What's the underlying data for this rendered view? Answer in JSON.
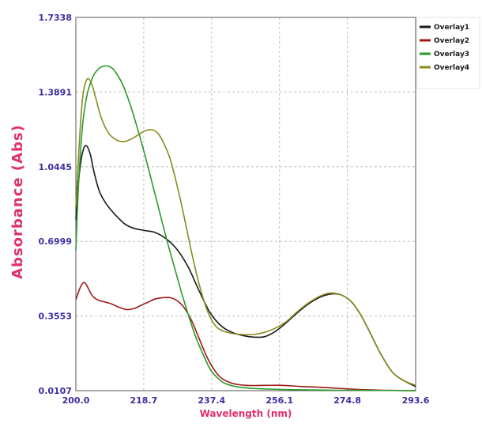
{
  "chart_data": {
    "type": "line",
    "xlabel": "Wavelength (nm)",
    "ylabel": "Absorbance (Abs)",
    "xlim": [
      200.0,
      293.6
    ],
    "ylim": [
      0.0107,
      1.7338
    ],
    "x_ticks": [
      200.0,
      218.7,
      237.4,
      256.1,
      274.8,
      293.6
    ],
    "x_tick_labels": [
      "200.0",
      "218.7",
      "237.4",
      "256.1",
      "274.8",
      "293.6"
    ],
    "y_ticks": [
      0.0107,
      0.3553,
      0.6999,
      1.0445,
      1.3891,
      1.7338
    ],
    "y_tick_labels": [
      "0.0107",
      "0.3553",
      "0.6999",
      "1.0445",
      "1.3891",
      "1.7338"
    ],
    "grid": true,
    "legend_position": "top-right",
    "series": [
      {
        "name": "Overlay1",
        "color": "#1a1a1a",
        "points": [
          [
            200.0,
            0.8
          ],
          [
            200.6,
            0.95
          ],
          [
            201.4,
            1.07
          ],
          [
            202.2,
            1.13
          ],
          [
            203.0,
            1.14
          ],
          [
            204.0,
            1.1
          ],
          [
            205.0,
            1.02
          ],
          [
            206.5,
            0.93
          ],
          [
            208.5,
            0.87
          ],
          [
            211.0,
            0.82
          ],
          [
            213.5,
            0.78
          ],
          [
            216.0,
            0.76
          ],
          [
            219.0,
            0.75
          ],
          [
            222.0,
            0.74
          ],
          [
            225.0,
            0.71
          ],
          [
            228.0,
            0.66
          ],
          [
            231.0,
            0.58
          ],
          [
            234.0,
            0.47
          ],
          [
            237.0,
            0.37
          ],
          [
            240.0,
            0.31
          ],
          [
            243.0,
            0.28
          ],
          [
            246.0,
            0.265
          ],
          [
            249.0,
            0.258
          ],
          [
            252.0,
            0.26
          ],
          [
            255.0,
            0.285
          ],
          [
            258.0,
            0.325
          ],
          [
            261.0,
            0.37
          ],
          [
            264.0,
            0.41
          ],
          [
            267.0,
            0.44
          ],
          [
            269.5,
            0.455
          ],
          [
            271.5,
            0.458
          ],
          [
            273.5,
            0.45
          ],
          [
            276.0,
            0.42
          ],
          [
            278.5,
            0.36
          ],
          [
            281.0,
            0.28
          ],
          [
            284.0,
            0.18
          ],
          [
            287.0,
            0.1
          ],
          [
            290.0,
            0.06
          ],
          [
            293.6,
            0.03
          ]
        ]
      },
      {
        "name": "Overlay2",
        "color": "#a01818",
        "points": [
          [
            200.0,
            0.43
          ],
          [
            200.8,
            0.47
          ],
          [
            201.6,
            0.5
          ],
          [
            202.4,
            0.51
          ],
          [
            203.2,
            0.49
          ],
          [
            204.5,
            0.45
          ],
          [
            206.0,
            0.43
          ],
          [
            208.0,
            0.42
          ],
          [
            210.0,
            0.41
          ],
          [
            212.0,
            0.395
          ],
          [
            214.0,
            0.385
          ],
          [
            216.0,
            0.39
          ],
          [
            218.0,
            0.405
          ],
          [
            220.0,
            0.42
          ],
          [
            222.0,
            0.435
          ],
          [
            224.0,
            0.44
          ],
          [
            226.0,
            0.44
          ],
          [
            228.0,
            0.425
          ],
          [
            230.0,
            0.39
          ],
          [
            232.0,
            0.33
          ],
          [
            234.0,
            0.25
          ],
          [
            236.0,
            0.17
          ],
          [
            238.0,
            0.11
          ],
          [
            240.0,
            0.07
          ],
          [
            243.0,
            0.045
          ],
          [
            247.0,
            0.035
          ],
          [
            252.0,
            0.035
          ],
          [
            257.0,
            0.035
          ],
          [
            262.0,
            0.03
          ],
          [
            268.0,
            0.026
          ],
          [
            274.0,
            0.02
          ],
          [
            280.0,
            0.015
          ],
          [
            286.0,
            0.012
          ],
          [
            293.6,
            0.011
          ]
        ]
      },
      {
        "name": "Overlay3",
        "color": "#2a9a2a",
        "points": [
          [
            200.0,
            0.66
          ],
          [
            200.6,
            0.92
          ],
          [
            201.3,
            1.12
          ],
          [
            202.0,
            1.26
          ],
          [
            203.0,
            1.37
          ],
          [
            204.0,
            1.43
          ],
          [
            205.0,
            1.47
          ],
          [
            206.5,
            1.5
          ],
          [
            208.0,
            1.51
          ],
          [
            209.5,
            1.505
          ],
          [
            211.0,
            1.48
          ],
          [
            213.0,
            1.42
          ],
          [
            215.0,
            1.33
          ],
          [
            217.0,
            1.22
          ],
          [
            219.0,
            1.1
          ],
          [
            221.0,
            0.97
          ],
          [
            223.0,
            0.84
          ],
          [
            225.0,
            0.71
          ],
          [
            227.0,
            0.59
          ],
          [
            229.0,
            0.47
          ],
          [
            231.0,
            0.36
          ],
          [
            233.0,
            0.26
          ],
          [
            235.0,
            0.18
          ],
          [
            237.0,
            0.11
          ],
          [
            239.0,
            0.07
          ],
          [
            241.0,
            0.045
          ],
          [
            244.0,
            0.03
          ],
          [
            248.0,
            0.022
          ],
          [
            253.0,
            0.018
          ],
          [
            260.0,
            0.015
          ],
          [
            270.0,
            0.013
          ],
          [
            280.0,
            0.012
          ],
          [
            293.6,
            0.011
          ]
        ]
      },
      {
        "name": "Overlay4",
        "color": "#8a8a1e",
        "points": [
          [
            200.0,
            0.86
          ],
          [
            200.6,
            1.05
          ],
          [
            201.3,
            1.25
          ],
          [
            202.0,
            1.38
          ],
          [
            202.8,
            1.44
          ],
          [
            203.6,
            1.45
          ],
          [
            204.5,
            1.42
          ],
          [
            205.5,
            1.36
          ],
          [
            207.0,
            1.27
          ],
          [
            209.0,
            1.2
          ],
          [
            211.0,
            1.17
          ],
          [
            213.0,
            1.16
          ],
          [
            215.0,
            1.17
          ],
          [
            217.0,
            1.19
          ],
          [
            219.0,
            1.21
          ],
          [
            221.0,
            1.215
          ],
          [
            222.5,
            1.2
          ],
          [
            224.0,
            1.16
          ],
          [
            226.0,
            1.08
          ],
          [
            228.0,
            0.95
          ],
          [
            230.0,
            0.8
          ],
          [
            232.0,
            0.64
          ],
          [
            234.0,
            0.5
          ],
          [
            236.0,
            0.39
          ],
          [
            238.0,
            0.32
          ],
          [
            240.0,
            0.29
          ],
          [
            243.0,
            0.275
          ],
          [
            246.0,
            0.27
          ],
          [
            249.0,
            0.27
          ],
          [
            252.0,
            0.28
          ],
          [
            255.0,
            0.3
          ],
          [
            258.0,
            0.33
          ],
          [
            261.0,
            0.375
          ],
          [
            264.0,
            0.415
          ],
          [
            267.0,
            0.445
          ],
          [
            269.5,
            0.46
          ],
          [
            271.5,
            0.46
          ],
          [
            273.5,
            0.45
          ],
          [
            276.0,
            0.42
          ],
          [
            278.5,
            0.36
          ],
          [
            281.0,
            0.28
          ],
          [
            284.0,
            0.18
          ],
          [
            287.0,
            0.1
          ],
          [
            290.0,
            0.06
          ],
          [
            293.6,
            0.035
          ]
        ]
      }
    ]
  }
}
